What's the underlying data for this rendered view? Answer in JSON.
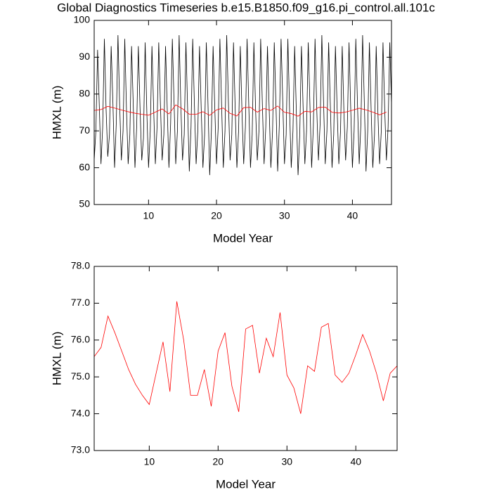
{
  "chart_data": [
    {
      "type": "line",
      "title": "Global Diagnostics Timeseries b.e15.B1850.f09_g16.pi_control.all.101c",
      "xlabel": "Model Year",
      "ylabel": "HMXL (m)",
      "xlim": [
        2,
        45.75
      ],
      "ylim": [
        50,
        100
      ],
      "xticks": [
        10,
        20,
        30,
        40
      ],
      "yticks": [
        50,
        60,
        70,
        80,
        90,
        100
      ],
      "series": [
        {
          "color": "#000000",
          "x": [
            2,
            2.25,
            2.5,
            2.75,
            3,
            3.25,
            3.5,
            3.75,
            4,
            4.25,
            4.5,
            4.75,
            5,
            5.25,
            5.5,
            5.75,
            6,
            6.25,
            6.5,
            6.75,
            7,
            7.25,
            7.5,
            7.75,
            8,
            8.25,
            8.5,
            8.75,
            9,
            9.25,
            9.5,
            9.75,
            10,
            10.25,
            10.5,
            10.75,
            11,
            11.25,
            11.5,
            11.75,
            12,
            12.25,
            12.5,
            12.75,
            13,
            13.25,
            13.5,
            13.75,
            14,
            14.25,
            14.5,
            14.75,
            15,
            15.25,
            15.5,
            15.75,
            16,
            16.25,
            16.5,
            16.75,
            17,
            17.25,
            17.5,
            17.75,
            18,
            18.25,
            18.5,
            18.75,
            19,
            19.25,
            19.5,
            19.75,
            20,
            20.25,
            20.5,
            20.75,
            21,
            21.25,
            21.5,
            21.75,
            22,
            22.25,
            22.5,
            22.75,
            23,
            23.25,
            23.5,
            23.75,
            24,
            24.25,
            24.5,
            24.75,
            25,
            25.25,
            25.5,
            25.75,
            26,
            26.25,
            26.5,
            26.75,
            27,
            27.25,
            27.5,
            27.75,
            28,
            28.25,
            28.5,
            28.75,
            29,
            29.25,
            29.5,
            29.75,
            30,
            30.25,
            30.5,
            30.75,
            31,
            31.25,
            31.5,
            31.75,
            32,
            32.25,
            32.5,
            32.75,
            33,
            33.25,
            33.5,
            33.75,
            34,
            34.25,
            34.5,
            34.75,
            35,
            35.25,
            35.5,
            35.75,
            36,
            36.25,
            36.5,
            36.75,
            37,
            37.25,
            37.5,
            37.75,
            38,
            38.25,
            38.5,
            38.75,
            39,
            39.25,
            39.5,
            39.75,
            40,
            40.25,
            40.5,
            40.75,
            41,
            41.25,
            41.5,
            41.75,
            42,
            42.25,
            42.5,
            42.75,
            43,
            43.25,
            43.5,
            43.75,
            44,
            44.25,
            44.5,
            44.75,
            45,
            45.25,
            45.5,
            45.75
          ],
          "values": [
            62,
            70,
            92,
            77,
            61,
            71,
            95,
            76,
            63,
            69,
            93,
            78,
            60,
            72,
            96,
            77,
            62,
            70,
            95,
            76,
            61,
            69,
            93,
            77,
            60,
            71,
            93,
            76,
            62,
            68,
            94,
            75,
            60,
            70,
            93,
            76,
            61,
            71,
            94,
            77,
            62,
            69,
            93,
            76,
            60,
            72,
            95,
            78,
            61,
            70,
            96,
            77,
            62,
            69,
            94,
            76,
            59,
            71,
            95,
            77,
            61,
            70,
            93,
            76,
            60,
            69,
            94,
            77,
            58,
            70,
            93,
            76,
            61,
            71,
            95,
            77,
            60,
            70,
            96,
            78,
            62,
            69,
            94,
            76,
            60,
            70,
            93,
            75,
            61,
            71,
            95,
            77,
            60,
            69,
            94,
            76,
            62,
            70,
            95,
            77,
            61,
            71,
            93,
            76,
            60,
            70,
            94,
            77,
            59,
            72,
            95,
            78,
            61,
            69,
            95,
            76,
            60,
            70,
            93,
            75,
            58,
            69,
            93,
            76,
            61,
            70,
            94,
            77,
            60,
            71,
            95,
            76,
            62,
            72,
            96,
            78,
            61,
            70,
            94,
            77,
            60,
            69,
            93,
            76,
            61,
            70,
            93,
            75,
            62,
            71,
            94,
            76,
            60,
            70,
            95,
            77,
            61,
            72,
            96,
            78,
            59,
            70,
            94,
            76,
            60,
            69,
            93,
            75,
            61,
            70,
            94,
            76,
            62,
            71,
            94,
            77
          ]
        },
        {
          "color": "#ff0000",
          "x": [
            2,
            3,
            4,
            5,
            6,
            7,
            8,
            9,
            10,
            11,
            12,
            13,
            14,
            15,
            16,
            17,
            18,
            19,
            20,
            21,
            22,
            23,
            24,
            25,
            26,
            27,
            28,
            29,
            30,
            31,
            32,
            33,
            34,
            35,
            36,
            37,
            38,
            39,
            40,
            41,
            42,
            43,
            44,
            45
          ],
          "values": [
            75.55,
            75.8,
            76.65,
            76.2,
            75.7,
            75.2,
            74.8,
            74.5,
            74.25,
            75.1,
            75.95,
            74.6,
            77.05,
            76.0,
            74.5,
            74.5,
            75.2,
            74.2,
            75.7,
            76.2,
            74.75,
            74.05,
            76.3,
            76.4,
            75.1,
            76.05,
            75.55,
            76.75,
            75.05,
            74.7,
            74.0,
            75.3,
            75.15,
            76.35,
            76.45,
            75.05,
            74.85,
            75.1,
            75.6,
            76.15,
            75.7,
            75.1,
            74.35,
            75.1
          ]
        }
      ]
    },
    {
      "type": "line",
      "xlabel": "Model Year",
      "ylabel": "HMXL (m)",
      "xlim": [
        2,
        46
      ],
      "ylim": [
        73,
        78
      ],
      "xticks": [
        10,
        20,
        30,
        40
      ],
      "yticks": [
        {
          "value": 73,
          "label": "73.0"
        },
        {
          "value": 74,
          "label": "74.0"
        },
        {
          "value": 75,
          "label": "75.0"
        },
        {
          "value": 76,
          "label": "76.0"
        },
        {
          "value": 77,
          "label": "77.0"
        },
        {
          "value": 78,
          "label": "78.0"
        }
      ],
      "series": [
        {
          "color": "#ff0000",
          "x": [
            2,
            3,
            4,
            5,
            6,
            7,
            8,
            9,
            10,
            11,
            12,
            13,
            14,
            15,
            16,
            17,
            18,
            19,
            20,
            21,
            22,
            23,
            24,
            25,
            26,
            27,
            28,
            29,
            30,
            31,
            32,
            33,
            34,
            35,
            36,
            37,
            38,
            39,
            40,
            41,
            42,
            43,
            44,
            45,
            46
          ],
          "values": [
            75.55,
            75.8,
            76.65,
            76.2,
            75.7,
            75.2,
            74.8,
            74.5,
            74.25,
            75.1,
            75.95,
            74.6,
            77.05,
            76.0,
            74.5,
            74.5,
            75.2,
            74.2,
            75.7,
            76.2,
            74.75,
            74.05,
            76.3,
            76.4,
            75.1,
            76.05,
            75.55,
            76.75,
            75.05,
            74.7,
            74.0,
            75.3,
            75.15,
            76.35,
            76.45,
            75.05,
            74.85,
            75.1,
            75.6,
            76.15,
            75.7,
            75.1,
            74.35,
            75.1,
            75.3
          ]
        }
      ]
    }
  ]
}
